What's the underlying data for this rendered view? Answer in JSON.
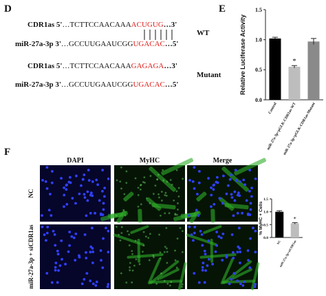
{
  "panel_d": {
    "label": "D",
    "wt": {
      "cdr1as": {
        "name": "CDR1as",
        "end_a": "5'",
        "seq": "…TCTTCCAACAAA",
        "site": "ACUGUG",
        "end_b": "…3'"
      },
      "mir": {
        "name": "miR-27a-3p",
        "end_a": "3'",
        "seq": "…GCCUUGAAUCGG",
        "site": "UGACAC",
        "end_b": "…5'"
      },
      "label": "WT"
    },
    "mutant": {
      "cdr1as": {
        "name": "CDR1as",
        "end_a": "5'",
        "seq": "…TCTTCCAACAAA",
        "site": "GAGAGA",
        "end_b": "…3'"
      },
      "mir": {
        "name": "miR-27a-3p",
        "end_a": "3'",
        "seq": "…GCCUUGAAUCGG",
        "site": "UGACAC",
        "end_b": "…5'"
      },
      "label": "Mutant"
    }
  },
  "chart_data": [
    {
      "type": "bar",
      "panel_label": "E",
      "ylabel": "Relative Luciferase Activity",
      "categories": [
        "Control",
        "miR-27a-3p+pGLK-CDR1as-WT",
        "miR-27a-3p+pGLK-CDR1as-Mutant"
      ],
      "values": [
        1.02,
        0.55,
        0.97
      ],
      "errors": [
        0.02,
        0.02,
        0.05
      ],
      "colors": [
        "#000000",
        "#bdbdbd",
        "#8a8a8a"
      ],
      "ylim": [
        0,
        1.5
      ],
      "yticks": [
        {
          "value": 0,
          "label": "0.0"
        },
        0.5,
        {
          "value": 1,
          "label": "1.0"
        },
        1.5
      ],
      "annotations": [
        {
          "text": "*"
        }
      ]
    },
    {
      "type": "bar",
      "ylabel": "% MyHC + Cells",
      "categories": [
        "NC",
        "miR-27a-3p+siCDR1as"
      ],
      "values": [
        1.0,
        0.55
      ],
      "errors": [
        0.04,
        0.03
      ],
      "colors": [
        "#000000",
        "#bdbdbd"
      ],
      "ylim": [
        0,
        1.5
      ],
      "yticks": [
        {
          "value": 0,
          "label": "0.0"
        },
        0.5,
        {
          "value": 1,
          "label": "1.0"
        },
        1.5
      ],
      "annotations": [
        {
          "text": "*"
        }
      ]
    }
  ],
  "panel_f": {
    "label": "F",
    "columns": [
      "DAPI",
      "MyHC",
      "Merge"
    ],
    "rows": [
      "NC",
      "miR-27a-3p + siCDR1as"
    ]
  }
}
